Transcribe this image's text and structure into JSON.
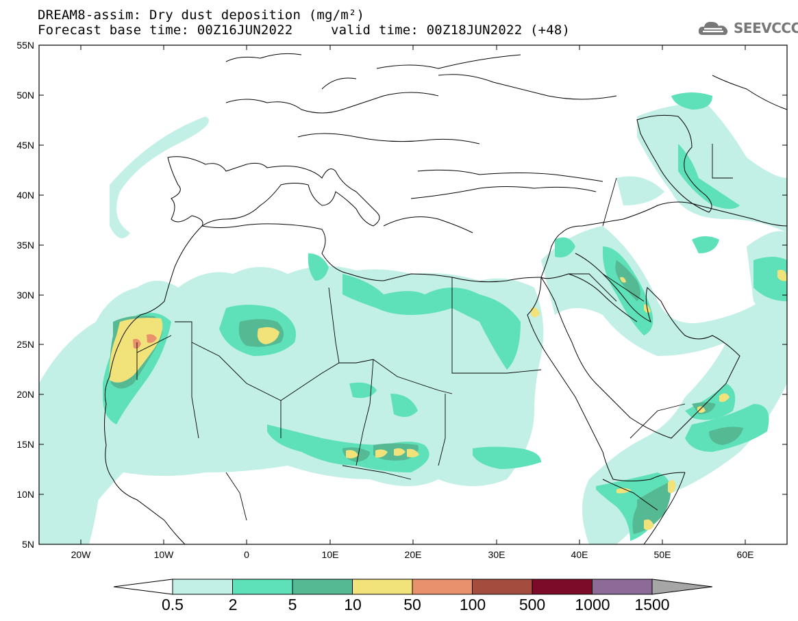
{
  "title": {
    "line1": "DREAM8-assim: Dry dust deposition (mg/m²)",
    "line2_base": "Forecast base time: 00Z16JUN2022",
    "line2_valid": "valid time: 00Z18JUN2022 (+48)"
  },
  "logo": {
    "text": "SEEVCCC",
    "icon": "cloud-logo-icon"
  },
  "map": {
    "projection": "lat-lon",
    "lon_range": [
      -25,
      65
    ],
    "lat_range": [
      5,
      55
    ],
    "y_ticks": [
      "55N",
      "50N",
      "45N",
      "40N",
      "35N",
      "30N",
      "25N",
      "20N",
      "15N",
      "10N",
      "5N"
    ],
    "x_ticks": [
      "20W",
      "10W",
      "0",
      "10E",
      "20E",
      "30E",
      "40E",
      "50E",
      "60E"
    ]
  },
  "colorbar": {
    "labels": [
      "0.5",
      "2",
      "5",
      "10",
      "50",
      "100",
      "500",
      "1000",
      "1500"
    ],
    "colors": [
      "#c2efe6",
      "#5ee1b8",
      "#55b993",
      "#f2e27a",
      "#e9906c",
      "#a44d3f",
      "#7c0b2a",
      "#8c6b99",
      "#a6a6a6"
    ]
  }
}
